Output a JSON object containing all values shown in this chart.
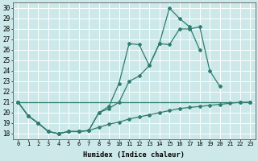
{
  "xlabel": "Humidex (Indice chaleur)",
  "bg_color": "#cce8e8",
  "grid_color": "#ffffff",
  "line_color": "#2e7d6e",
  "xlim": [
    -0.5,
    23.5
  ],
  "ylim": [
    17.5,
    30.5
  ],
  "yticks": [
    18,
    19,
    20,
    21,
    22,
    23,
    24,
    25,
    26,
    27,
    28,
    29,
    30
  ],
  "xticks": [
    0,
    1,
    2,
    3,
    4,
    5,
    6,
    7,
    8,
    9,
    10,
    11,
    12,
    13,
    14,
    15,
    16,
    17,
    18,
    19,
    20,
    21,
    22,
    23
  ],
  "xtick_labels": [
    "0",
    "1",
    "2",
    "3",
    "4",
    "5",
    "6",
    "7",
    "8",
    "9",
    "10",
    "11",
    "12",
    "13",
    "14",
    "15",
    "16",
    "17",
    "18",
    "19",
    "20",
    "21",
    "22",
    "23"
  ],
  "line1_x": [
    0,
    1,
    2,
    3,
    4,
    5,
    6,
    7,
    8,
    9,
    10,
    11,
    12,
    13,
    14,
    15,
    16,
    17,
    18
  ],
  "line1_y": [
    21,
    19.7,
    19,
    18.2,
    18,
    18.2,
    18.2,
    18.3,
    20,
    20.6,
    22.8,
    26.6,
    26.5,
    24.5,
    26.6,
    30,
    29,
    28.2,
    26
  ],
  "line2_x": [
    0,
    1,
    2,
    3,
    4,
    5,
    6,
    7,
    8,
    9,
    10,
    11,
    12,
    13,
    14,
    15,
    16,
    17,
    18,
    19,
    20
  ],
  "line2_y": [
    21,
    19.7,
    19,
    18.2,
    18,
    18.2,
    18.2,
    18.3,
    20.0,
    20.4,
    21.0,
    23.0,
    23.5,
    24.5,
    26.6,
    26.5,
    28.0,
    28.0,
    28.2,
    24.0,
    22.5
  ],
  "line3_x": [
    0,
    1,
    2,
    3,
    4,
    5,
    6,
    7,
    8,
    9,
    10,
    11,
    12,
    13,
    14,
    15,
    16,
    17,
    18,
    19,
    20,
    21,
    22,
    23
  ],
  "line3_y": [
    21,
    19.7,
    19,
    18.2,
    18,
    18.2,
    18.2,
    18.3,
    18.6,
    18.9,
    19.1,
    19.4,
    19.6,
    19.8,
    20.0,
    20.2,
    20.4,
    20.5,
    20.6,
    20.7,
    20.8,
    20.9,
    21.0,
    21.0
  ],
  "line4_x": [
    0,
    22,
    23
  ],
  "line4_y": [
    21,
    21,
    21
  ]
}
